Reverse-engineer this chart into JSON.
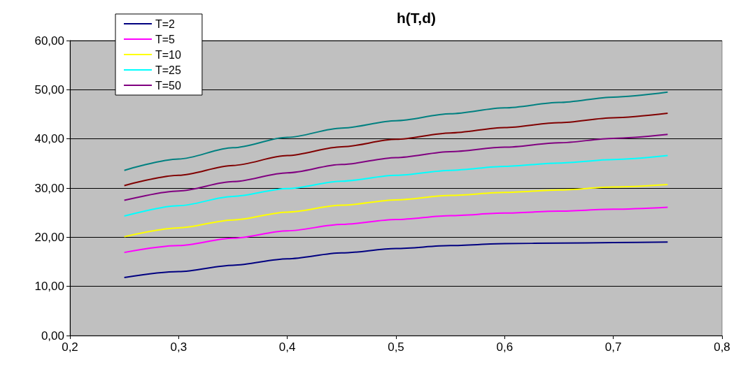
{
  "chart_data": {
    "type": "line",
    "title": "h(T,d)",
    "x": [
      0.25,
      0.3,
      0.35,
      0.4,
      0.45,
      0.5,
      0.55,
      0.6,
      0.65,
      0.7,
      0.75
    ],
    "series": [
      {
        "name": "T=2",
        "color": "#000080",
        "values": [
          11.8,
          13.0,
          14.3,
          15.6,
          16.8,
          17.7,
          18.3,
          18.7,
          18.8,
          18.9,
          19.0
        ]
      },
      {
        "name": "T=5",
        "color": "#ff00ff",
        "values": [
          16.9,
          18.3,
          19.8,
          21.3,
          22.6,
          23.6,
          24.4,
          24.9,
          25.3,
          25.7,
          26.1
        ]
      },
      {
        "name": "T=10",
        "color": "#ffff00",
        "values": [
          20.1,
          21.9,
          23.5,
          25.1,
          26.5,
          27.6,
          28.5,
          29.1,
          29.6,
          30.2,
          30.7
        ]
      },
      {
        "name": "T=25",
        "color": "#00ffff",
        "values": [
          24.3,
          26.4,
          28.3,
          29.9,
          31.4,
          32.6,
          33.6,
          34.4,
          35.1,
          35.8,
          36.6
        ]
      },
      {
        "name": "T=50",
        "color": "#800080",
        "values": [
          27.5,
          29.4,
          31.3,
          33.1,
          34.8,
          36.2,
          37.4,
          38.3,
          39.2,
          40.1,
          40.9
        ]
      },
      {
        "color": "#800000",
        "values": [
          30.5,
          32.6,
          34.6,
          36.6,
          38.4,
          39.9,
          41.2,
          42.3,
          43.3,
          44.3,
          45.2
        ]
      },
      {
        "color": "#008080",
        "values": [
          33.6,
          35.9,
          38.2,
          40.3,
          42.2,
          43.7,
          45.1,
          46.3,
          47.4,
          48.5,
          49.5
        ]
      }
    ],
    "xlim": [
      0.2,
      0.8
    ],
    "xticks": [
      {
        "value": 0.2,
        "label": "0,2"
      },
      {
        "value": 0.3,
        "label": "0,3"
      },
      {
        "value": 0.4,
        "label": "0,4"
      },
      {
        "value": 0.5,
        "label": "0,5"
      },
      {
        "value": 0.6,
        "label": "0,6"
      },
      {
        "value": 0.7,
        "label": "0,7"
      },
      {
        "value": 0.8,
        "label": "0,8"
      }
    ],
    "ylim": [
      0,
      60
    ],
    "yticks": [
      {
        "value": 0,
        "label": "0,00"
      },
      {
        "value": 10,
        "label": "10,00"
      },
      {
        "value": 20,
        "label": "20,00"
      },
      {
        "value": 30,
        "label": "30,00"
      },
      {
        "value": 40,
        "label": "40,00"
      },
      {
        "value": 50,
        "label": "50,00"
      },
      {
        "value": 60,
        "label": "60,00"
      }
    ],
    "grid": "y",
    "legend": "top left",
    "marker": "none",
    "line_style": "solid"
  }
}
